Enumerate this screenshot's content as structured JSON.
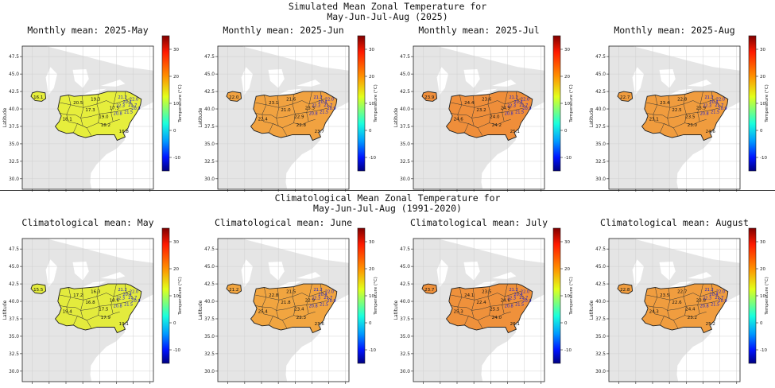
{
  "figure": {
    "top_title": [
      "Simulated Mean Zonal Temperature for",
      "May-Jun-Jul-Aug (2025)"
    ],
    "bottom_title": [
      "Climatological Mean Zonal Temperature for",
      "May-Jun-Jul-Aug (1991-2020)"
    ]
  },
  "axes": {
    "xlabel": "Longitude",
    "ylabel": "Latitude",
    "xticks": [
      "-90.0",
      "-87.5",
      "-85.0",
      "-82.5",
      "-80.0",
      "-77.5",
      "-75.0",
      "-72.5"
    ],
    "yticks": [
      "47.5",
      "45.0",
      "42.5",
      "40.0",
      "37.5",
      "35.0",
      "32.5",
      "30.0"
    ],
    "colorbar_label": "Temperature (°C)",
    "colorbar_ticks": [
      "30",
      "20",
      "10",
      "0",
      "-10"
    ],
    "colorbar_range": [
      -15,
      35
    ]
  },
  "panels": [
    {
      "title": "Monthly mean: 2025-May",
      "fill": "#e6ee3c",
      "west_label": "16.1",
      "labels": [
        "20.5",
        "17.3",
        "19.0",
        "16.8",
        "18.1",
        "19.3",
        "17.5",
        "18.2"
      ]
    },
    {
      "title": "Monthly mean: 2025-Jun",
      "fill": "#f1a240",
      "west_label": "22.0",
      "labels": [
        "23.1",
        "21.0",
        "22.9",
        "23.7",
        "22.4",
        "21.6",
        "23.3",
        "22.8"
      ]
    },
    {
      "title": "Monthly mean: 2025-Jul",
      "fill": "#ef8e3a",
      "west_label": "23.9",
      "labels": [
        "24.4",
        "23.2",
        "24.0",
        "25.1",
        "24.6",
        "23.6",
        "24.9",
        "24.2"
      ]
    },
    {
      "title": "Monthly mean: 2025-Aug",
      "fill": "#f09c3e",
      "west_label": "22.7",
      "labels": [
        "23.4",
        "22.5",
        "23.5",
        "24.6",
        "23.1",
        "22.8",
        "23.9",
        "23.0"
      ]
    },
    {
      "title": "Climatological mean: May",
      "fill": "#e3eb3d",
      "west_label": "15.5",
      "labels": [
        "17.2",
        "16.8",
        "17.5",
        "19.1",
        "19.4",
        "16.3",
        "18.6",
        "17.9"
      ]
    },
    {
      "title": "Climatological mean: June",
      "fill": "#f1a540",
      "west_label": "21.2",
      "labels": [
        "22.8",
        "21.8",
        "23.4",
        "23.6",
        "25.4",
        "21.5",
        "22.9",
        "22.3"
      ]
    },
    {
      "title": "Climatological mean: July",
      "fill": "#ef913b",
      "west_label": "23.7",
      "labels": [
        "24.1",
        "22.4",
        "25.5",
        "26.1",
        "25.3",
        "23.5",
        "24.6",
        "24.0"
      ]
    },
    {
      "title": "Climatological mean: August",
      "fill": "#f09d3f",
      "west_label": "22.8",
      "labels": [
        "23.5",
        "22.6",
        "24.4",
        "25.2",
        "24.3",
        "22.7",
        "23.8",
        "23.2"
      ]
    }
  ]
}
